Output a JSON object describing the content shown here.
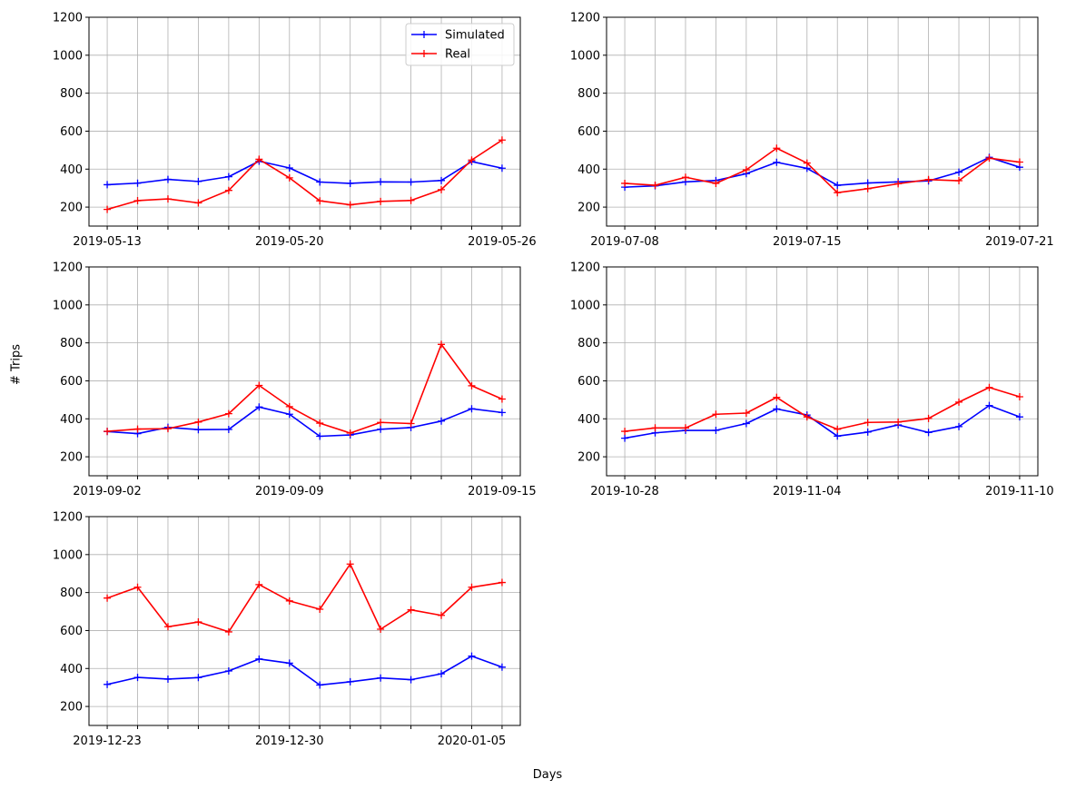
{
  "figure": {
    "xlabel": "Days",
    "ylabel": "# Trips",
    "colors": {
      "simulated": "#0000ff",
      "real": "#ff0000",
      "grid": "#b0b0b0",
      "axes": "#000000"
    }
  },
  "chart_data": [
    {
      "type": "line",
      "ylim": [
        100,
        1200
      ],
      "yticks": [
        200,
        400,
        600,
        800,
        1000,
        1200
      ],
      "xlim": [
        -0.6,
        13.6
      ],
      "xtick_labels": {
        "0": "2019-05-13",
        "6": "2019-05-20",
        "13": "2019-05-26"
      },
      "grid": true,
      "legend": {
        "position": "upper-right",
        "entries": [
          "Simulated",
          "Real"
        ]
      },
      "series": [
        {
          "name": "Simulated",
          "values": [
            318,
            326,
            346,
            335,
            360,
            442,
            406,
            332,
            325,
            333,
            332,
            340,
            440,
            405
          ]
        },
        {
          "name": "Real",
          "values": [
            188,
            234,
            243,
            222,
            288,
            452,
            354,
            233,
            212,
            230,
            235,
            292,
            448,
            553
          ]
        }
      ]
    },
    {
      "type": "line",
      "ylim": [
        100,
        1200
      ],
      "yticks": [
        200,
        400,
        600,
        800,
        1000,
        1200
      ],
      "xlim": [
        -0.6,
        13.6
      ],
      "xtick_labels": {
        "0": "2019-07-08",
        "6": "2019-07-15",
        "13": "2019-07-21"
      },
      "grid": true,
      "series": [
        {
          "name": "Simulated",
          "values": [
            305,
            312,
            333,
            340,
            376,
            436,
            404,
            315,
            327,
            333,
            338,
            384,
            462,
            410
          ]
        },
        {
          "name": "Real",
          "values": [
            325,
            315,
            357,
            325,
            396,
            510,
            432,
            276,
            297,
            323,
            345,
            339,
            458,
            437
          ]
        }
      ]
    },
    {
      "type": "line",
      "ylim": [
        100,
        1200
      ],
      "yticks": [
        200,
        400,
        600,
        800,
        1000,
        1200
      ],
      "xlim": [
        -0.6,
        13.6
      ],
      "xtick_labels": {
        "0": "2019-09-02",
        "6": "2019-09-09",
        "13": "2019-09-15"
      },
      "grid": true,
      "series": [
        {
          "name": "Simulated",
          "values": [
            333,
            322,
            355,
            343,
            344,
            462,
            424,
            308,
            315,
            345,
            354,
            388,
            453,
            433
          ]
        },
        {
          "name": "Real",
          "values": [
            334,
            346,
            348,
            383,
            427,
            576,
            464,
            377,
            325,
            381,
            375,
            792,
            574,
            504
          ]
        }
      ]
    },
    {
      "type": "line",
      "ylim": [
        100,
        1200
      ],
      "yticks": [
        200,
        400,
        600,
        800,
        1000,
        1200
      ],
      "xlim": [
        -0.6,
        13.6
      ],
      "xtick_labels": {
        "0": "2019-10-28",
        "6": "2019-11-04",
        "13": "2019-11-10"
      },
      "grid": true,
      "series": [
        {
          "name": "Simulated",
          "values": [
            298,
            326,
            339,
            339,
            375,
            452,
            420,
            309,
            330,
            368,
            328,
            359,
            470,
            410
          ]
        },
        {
          "name": "Real",
          "values": [
            334,
            352,
            352,
            424,
            430,
            513,
            410,
            345,
            381,
            383,
            402,
            488,
            565,
            516
          ]
        }
      ]
    },
    {
      "type": "line",
      "ylim": [
        100,
        1200
      ],
      "yticks": [
        200,
        400,
        600,
        800,
        1000,
        1200
      ],
      "xlim": [
        -0.6,
        13.6
      ],
      "xtick_labels": {
        "0": "2019-12-23",
        "6": "2019-12-30",
        "12": "2020-01-05"
      },
      "grid": true,
      "series": [
        {
          "name": "Simulated",
          "values": [
            316,
            353,
            344,
            352,
            387,
            450,
            428,
            313,
            330,
            350,
            341,
            372,
            465,
            407
          ]
        },
        {
          "name": "Real",
          "values": [
            771,
            828,
            620,
            645,
            593,
            842,
            756,
            712,
            950,
            607,
            709,
            680,
            828,
            853
          ]
        }
      ]
    }
  ]
}
